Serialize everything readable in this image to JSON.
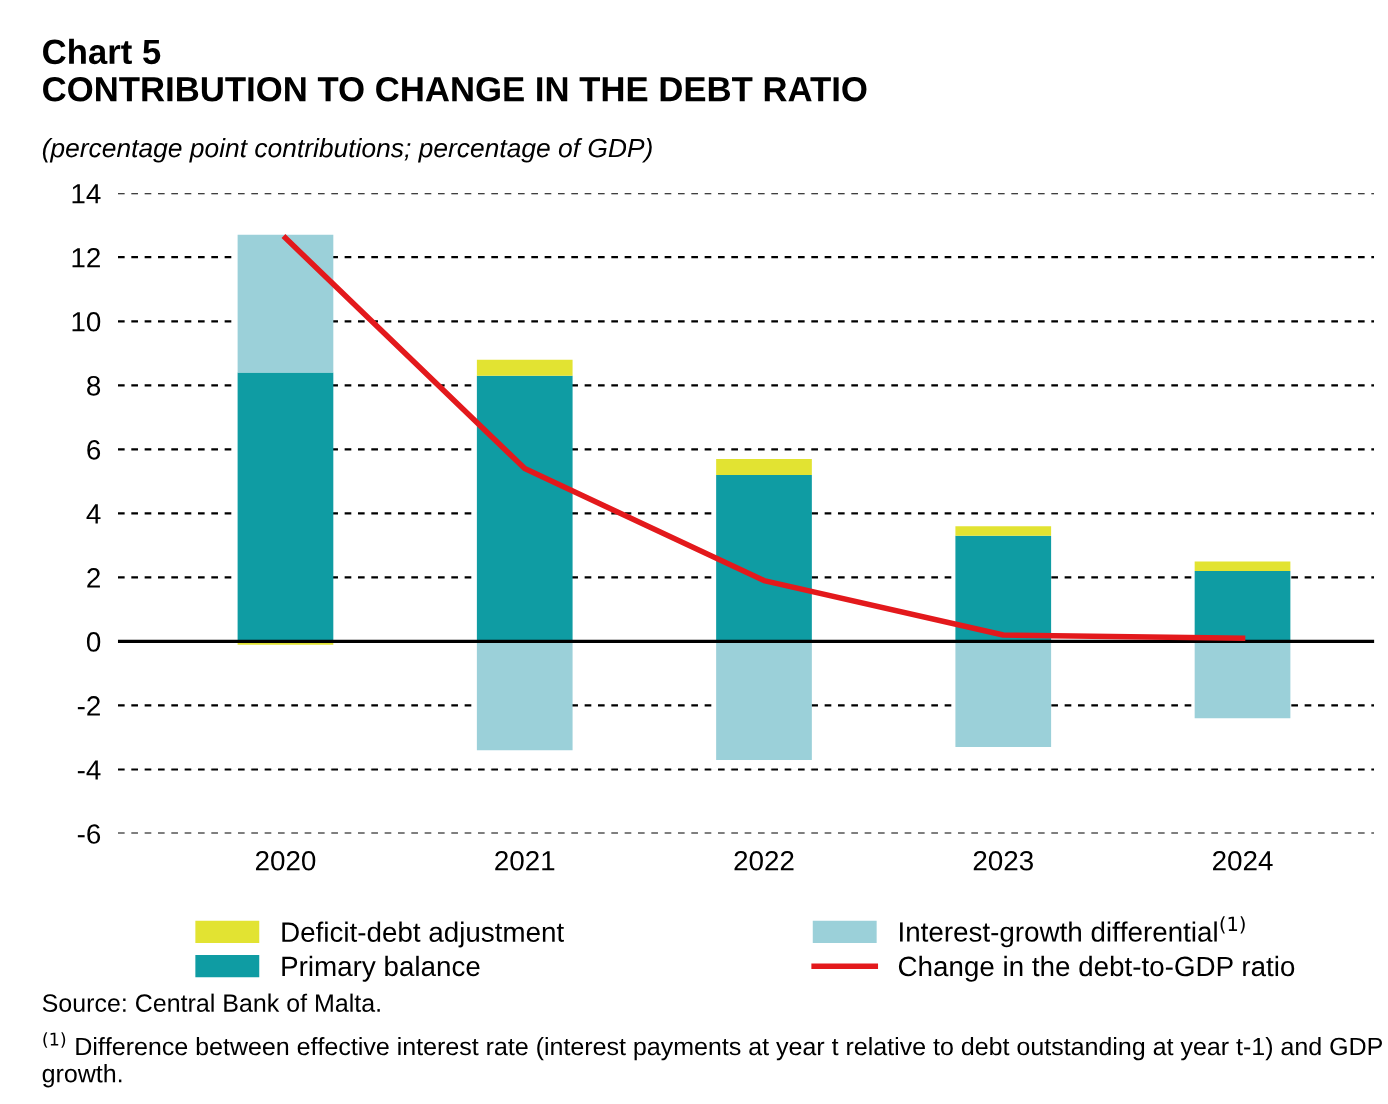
{
  "chart_data": {
    "type": "bar",
    "title": "Chart 5\nCONTRIBUTION TO CHANGE IN THE DEBT RATIO",
    "subtitle": "(percentage point contributions; percentage of GDP)",
    "categories": [
      "2020",
      "2021",
      "2022",
      "2023",
      "2024"
    ],
    "stacked": true,
    "series": [
      {
        "name": "Primary balance",
        "color": "#0f9ca3",
        "values": [
          8.4,
          8.3,
          5.2,
          3.3,
          2.2
        ]
      },
      {
        "name": "Interest-growth differential$^{(1)}$",
        "color": "#9bd0d9",
        "values": [
          4.3,
          -3.4,
          -3.7,
          -3.3,
          -2.4
        ]
      },
      {
        "name": "Deficit-debt adjustment",
        "color": "#e2e332",
        "values": [
          -0.1,
          0.5,
          0.5,
          0.3,
          0.3
        ]
      },
      {
        "name": "Change in the debt-to-GDP ratio",
        "type": "line",
        "color": "#e3191c",
        "values": [
          12.6,
          5.4,
          1.9,
          0.2,
          0.1
        ]
      }
    ],
    "ylim": [
      -6,
      14
    ],
    "yticks": [
      -6,
      -4,
      -2,
      0,
      2,
      4,
      6,
      8,
      10,
      12,
      14
    ],
    "grid": "y",
    "legend": "bottom",
    "annotations": [
      "Source: Central Bank of Malta.",
      "$^{(1)}$ Difference between effective interest rate (interest payments at year t relative to debt outstanding at year t-1) and GDP growth."
    ]
  }
}
